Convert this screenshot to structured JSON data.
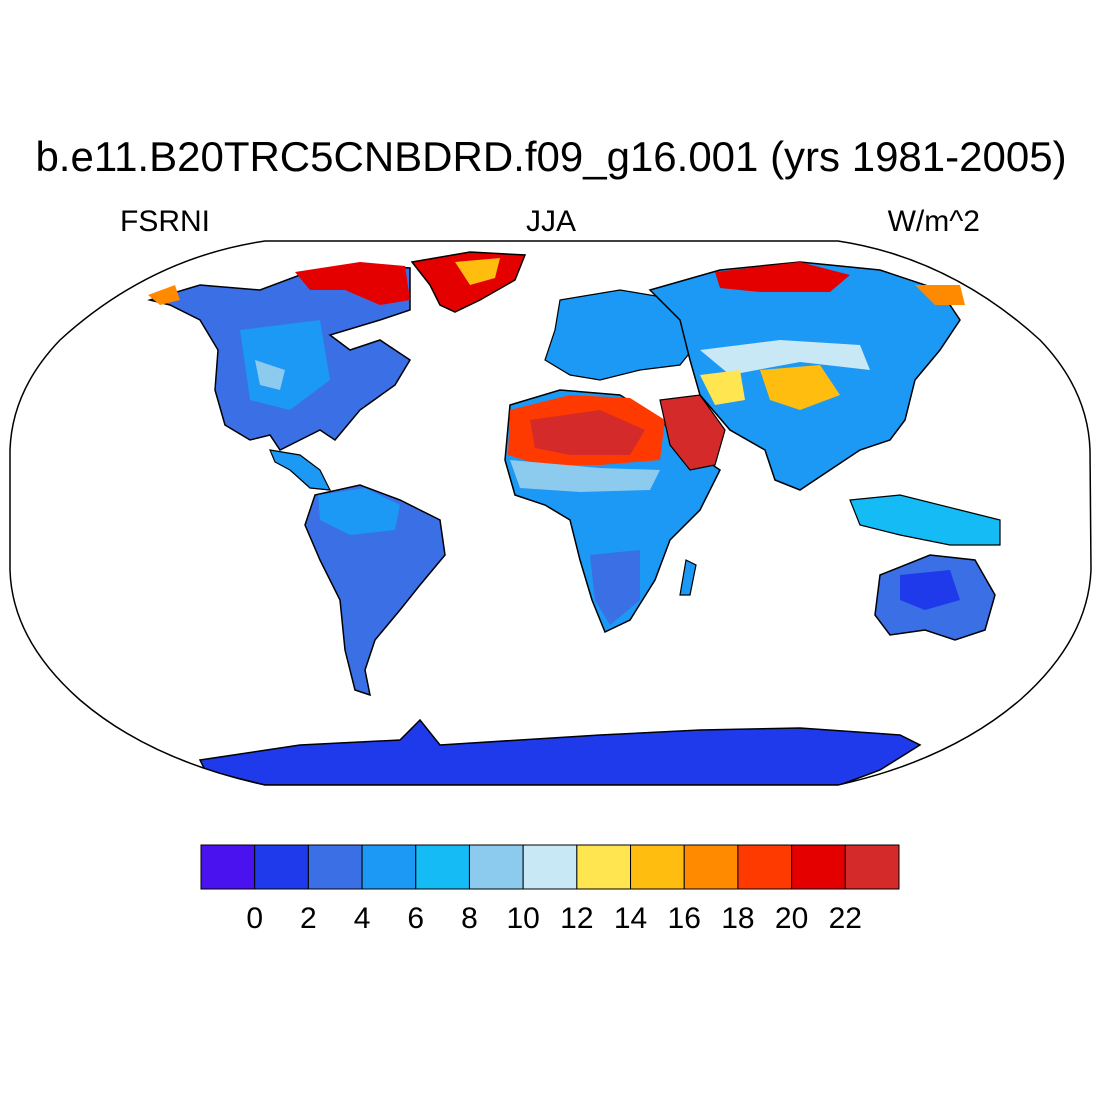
{
  "title": "b.e11.B20TRC5CNBDRD.f09_g16.001 (yrs 1981-2005)",
  "left_label": "FSRNI",
  "center_label": "JJA",
  "right_label": "W/m^2",
  "projection": "robinson",
  "colorbar": {
    "levels": [
      0,
      2,
      4,
      6,
      8,
      10,
      12,
      14,
      16,
      18,
      20,
      22
    ],
    "tick_labels": [
      "0",
      "2",
      "4",
      "6",
      "8",
      "10",
      "12",
      "14",
      "16",
      "18",
      "20",
      "22"
    ],
    "colors": [
      "#4b12f0",
      "#1f3aea",
      "#3a6fe6",
      "#1c98f5",
      "#15bbf5",
      "#8ccaee",
      "#c9e8f5",
      "#ffe650",
      "#ffbd10",
      "#ff8a00",
      "#ff3a00",
      "#e50000",
      "#d42a2a"
    ]
  }
}
